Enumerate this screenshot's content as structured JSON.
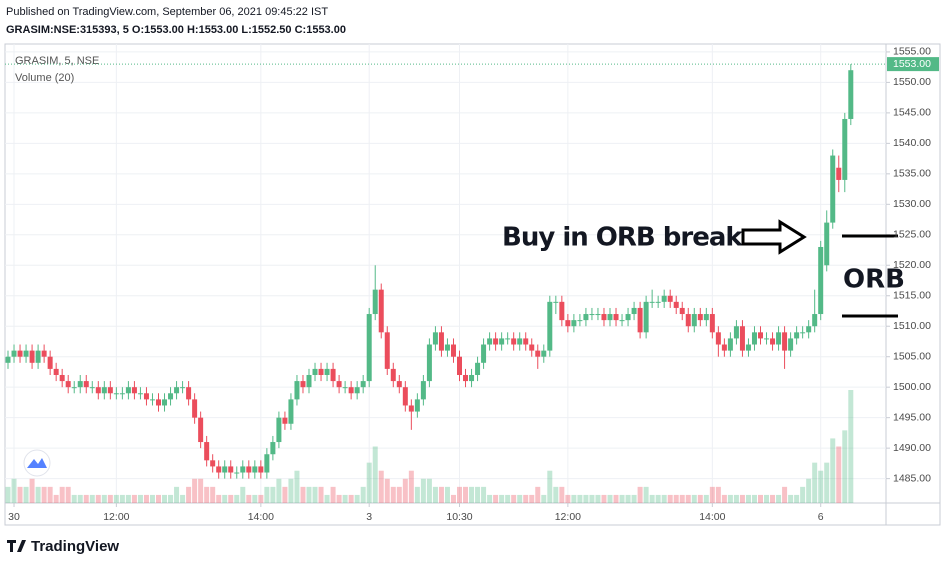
{
  "header": {
    "published": "Published on TradingView.com, September 06, 2021 09:45:22 IST",
    "symbol_line": "GRASIM:NSE:315393, 5  O:1553.00 H:1553.00 L:1552.50 C:1553.00"
  },
  "chart_data": {
    "type": "candlestick",
    "legend": "GRASIM, 5, NSE",
    "volume_label": "Volume (20)",
    "annotations": [
      "Buy in ORB break",
      "ORB"
    ],
    "last_price": {
      "value": 1553,
      "label": "1553.00"
    },
    "ylim": [
      1481,
      1556.3
    ],
    "yticks": [
      {
        "value": 1485,
        "label": "1485.00"
      },
      {
        "value": 1490,
        "label": "1490.00"
      },
      {
        "value": 1495,
        "label": "1495.00"
      },
      {
        "value": 1500,
        "label": "1500.00"
      },
      {
        "value": 1505,
        "label": "1505.00"
      },
      {
        "value": 1510,
        "label": "1510.00"
      },
      {
        "value": 1515,
        "label": "1515.00"
      },
      {
        "value": 1520,
        "label": "1520.00"
      },
      {
        "value": 1525,
        "label": "1525.00"
      },
      {
        "value": 1530,
        "label": "1530.00"
      },
      {
        "value": 1535,
        "label": "1535.00"
      },
      {
        "value": 1540,
        "label": "1540.00"
      },
      {
        "value": 1545,
        "label": "1545.00"
      },
      {
        "value": 1550,
        "label": "1550.00"
      },
      {
        "value": 1555,
        "label": "1555.00"
      }
    ],
    "xticks": [
      {
        "value": 1,
        "label": "30"
      },
      {
        "value": 18,
        "label": "12:00"
      },
      {
        "value": 42,
        "label": "14:00"
      },
      {
        "value": 60,
        "label": "3"
      },
      {
        "value": 75,
        "label": "10:30"
      },
      {
        "value": 93,
        "label": "12:00"
      },
      {
        "value": 117,
        "label": "14:00"
      },
      {
        "value": 135,
        "label": "6"
      }
    ],
    "up_color": "#53b987",
    "down_color": "#eb4d5c",
    "open": [
      1504,
      1505,
      1506,
      1505,
      1506,
      1504,
      1506,
      1505,
      1503,
      1502,
      1501,
      1500,
      1500,
      1501,
      1500,
      1500,
      1499,
      1500,
      1499,
      1499,
      1499,
      1500,
      1499,
      1499,
      1498,
      1498,
      1497,
      1498,
      1499,
      1500,
      1500,
      1498,
      1495,
      1491,
      1488,
      1487,
      1486,
      1487,
      1486,
      1486,
      1487,
      1486,
      1487,
      1486,
      1489,
      1491,
      1495,
      1494,
      1498,
      1501,
      1500,
      1502,
      1503,
      1502,
      1503,
      1501,
      1500,
      1500,
      1499,
      1500,
      1501,
      1512,
      1516,
      1509,
      1503,
      1501,
      1500,
      1497,
      1496,
      1498,
      1501,
      1507,
      1509,
      1506,
      1507,
      1505,
      1502,
      1501,
      1502,
      1504,
      1507,
      1508,
      1507,
      1508,
      1508,
      1507,
      1508,
      1507,
      1506,
      1505,
      1506,
      1514,
      1514,
      1511,
      1510,
      1511,
      1511,
      1512,
      1512,
      1512,
      1511,
      1512,
      1511,
      1511,
      1512,
      1513,
      1509,
      1514,
      1514,
      1514,
      1515,
      1514,
      1513,
      1512,
      1510,
      1512,
      1511,
      1512,
      1509,
      1507,
      1506,
      1508,
      1510,
      1506,
      1507,
      1509,
      1508,
      1508,
      1507,
      1509,
      1506,
      1508,
      1509,
      1509,
      1510,
      1512,
      1520,
      1527,
      1536,
      1534,
      1544
    ],
    "high": [
      1506,
      1507,
      1507,
      1507,
      1507,
      1507,
      1507,
      1506,
      1504,
      1503,
      1502,
      1501,
      1502,
      1502,
      1501,
      1501,
      1501,
      1501,
      1500,
      1500,
      1501,
      1501,
      1500,
      1500,
      1499,
      1499,
      1499,
      1500,
      1501,
      1501,
      1501,
      1499,
      1496,
      1492,
      1489,
      1488,
      1488,
      1488,
      1487,
      1488,
      1488,
      1488,
      1488,
      1490,
      1492,
      1496,
      1496,
      1499,
      1502,
      1502,
      1503,
      1504,
      1504,
      1504,
      1504,
      1502,
      1501,
      1501,
      1501,
      1502,
      1513,
      1520,
      1517,
      1510,
      1504,
      1502,
      1501,
      1498,
      1499,
      1502,
      1508,
      1510,
      1510,
      1508,
      1508,
      1506,
      1503,
      1503,
      1505,
      1508,
      1509,
      1509,
      1509,
      1509,
      1509,
      1509,
      1509,
      1508,
      1507,
      1507,
      1515,
      1515,
      1515,
      1512,
      1512,
      1512,
      1513,
      1513,
      1513,
      1513,
      1513,
      1513,
      1512,
      1513,
      1514,
      1514,
      1515,
      1516,
      1515,
      1516,
      1516,
      1515,
      1514,
      1513,
      1513,
      1513,
      1513,
      1513,
      1510,
      1508,
      1509,
      1511,
      1511,
      1508,
      1510,
      1510,
      1509,
      1509,
      1510,
      1510,
      1509,
      1510,
      1510,
      1511,
      1516,
      1524,
      1529,
      1539,
      1538,
      1545,
      1553
    ],
    "low": [
      1503,
      1504,
      1504,
      1504,
      1503,
      1503,
      1504,
      1502,
      1501,
      1500,
      1499,
      1499,
      1499,
      1499,
      1499,
      1498,
      1498,
      1498,
      1498,
      1498,
      1498,
      1498,
      1498,
      1497,
      1497,
      1496,
      1496,
      1497,
      1498,
      1499,
      1497,
      1494,
      1490,
      1487,
      1486,
      1485,
      1485,
      1485,
      1485,
      1485,
      1485,
      1485,
      1485,
      1485,
      1488,
      1490,
      1493,
      1493,
      1497,
      1499,
      1499,
      1501,
      1501,
      1501,
      1500,
      1499,
      1499,
      1498,
      1498,
      1499,
      1500,
      1511,
      1508,
      1502,
      1500,
      1499,
      1496,
      1493,
      1495,
      1497,
      1500,
      1506,
      1505,
      1505,
      1504,
      1501,
      1500,
      1500,
      1501,
      1503,
      1506,
      1506,
      1506,
      1507,
      1506,
      1506,
      1506,
      1505,
      1503,
      1504,
      1505,
      1512,
      1510,
      1509,
      1509,
      1510,
      1510,
      1511,
      1511,
      1510,
      1510,
      1510,
      1510,
      1510,
      1511,
      1508,
      1508,
      1513,
      1513,
      1513,
      1513,
      1512,
      1511,
      1509,
      1509,
      1510,
      1510,
      1508,
      1505,
      1505,
      1505,
      1507,
      1505,
      1505,
      1506,
      1507,
      1507,
      1506,
      1506,
      1503,
      1505,
      1507,
      1508,
      1508,
      1509,
      1511,
      1519,
      1526,
      1532,
      1532,
      1543
    ],
    "close": [
      1505,
      1506,
      1505,
      1506,
      1504,
      1506,
      1505,
      1503,
      1502,
      1501,
      1500,
      1500,
      1501,
      1500,
      1500,
      1499,
      1500,
      1499,
      1499,
      1499,
      1500,
      1499,
      1499,
      1498,
      1498,
      1497,
      1498,
      1499,
      1500,
      1500,
      1498,
      1495,
      1491,
      1488,
      1487,
      1486,
      1487,
      1486,
      1486,
      1487,
      1486,
      1487,
      1486,
      1489,
      1491,
      1495,
      1494,
      1498,
      1501,
      1500,
      1502,
      1503,
      1502,
      1503,
      1501,
      1500,
      1500,
      1499,
      1500,
      1501,
      1512,
      1516,
      1509,
      1503,
      1501,
      1500,
      1497,
      1496,
      1498,
      1501,
      1507,
      1509,
      1506,
      1507,
      1505,
      1502,
      1501,
      1502,
      1504,
      1507,
      1508,
      1507,
      1508,
      1508,
      1507,
      1508,
      1507,
      1506,
      1505,
      1506,
      1514,
      1514,
      1511,
      1510,
      1511,
      1511,
      1512,
      1512,
      1512,
      1511,
      1512,
      1511,
      1511,
      1512,
      1513,
      1509,
      1514,
      1514,
      1514,
      1515,
      1514,
      1513,
      1512,
      1510,
      1512,
      1511,
      1512,
      1509,
      1507,
      1506,
      1508,
      1510,
      1506,
      1507,
      1509,
      1508,
      1508,
      1507,
      1509,
      1506,
      1508,
      1509,
      1509,
      1510,
      1512,
      1523,
      1527,
      1538,
      1534,
      1544,
      1552
    ],
    "volume": [
      2,
      3,
      2,
      2,
      3,
      2,
      2,
      2,
      1,
      2,
      2,
      1,
      1,
      1,
      1,
      1,
      1,
      1,
      1,
      1,
      1,
      1,
      1,
      1,
      1,
      1,
      1,
      1,
      2,
      1,
      2,
      3,
      3,
      2,
      2,
      1,
      1,
      1,
      1,
      2,
      1,
      1,
      1,
      2,
      2,
      3,
      2,
      3,
      4,
      2,
      2,
      2,
      2,
      1,
      2,
      1,
      1,
      1,
      1,
      2,
      5,
      7,
      4,
      3,
      2,
      2,
      3,
      4,
      2,
      3,
      3,
      2,
      2,
      2,
      1,
      2,
      2,
      2,
      2,
      2,
      1,
      1,
      1,
      1,
      1,
      1,
      1,
      1,
      2,
      1,
      4,
      2,
      2,
      1,
      1,
      1,
      1,
      1,
      1,
      1,
      1,
      1,
      1,
      1,
      1,
      2,
      2,
      1,
      1,
      1,
      1,
      1,
      1,
      1,
      1,
      1,
      1,
      2,
      2,
      1,
      1,
      1,
      1,
      1,
      1,
      1,
      1,
      1,
      1,
      2,
      1,
      1,
      2,
      3,
      5,
      4,
      5,
      8,
      7,
      9,
      14
    ]
  },
  "footer": {
    "brand": "TradingView"
  }
}
